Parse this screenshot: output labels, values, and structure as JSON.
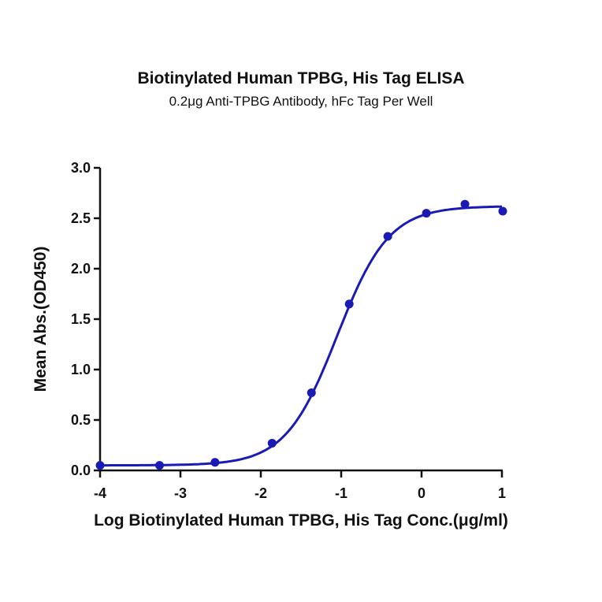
{
  "chart_data": {
    "type": "scatter",
    "title": "Biotinylated Human TPBG, His Tag ELISA",
    "subtitle": "0.2μg Anti-TPBG Antibody, hFc Tag Per Well",
    "xlabel": "Log Biotinylated Human TPBG, His Tag Conc.(μg/ml)",
    "ylabel": "Mean Abs.(OD450)",
    "xlim": [
      -4,
      1
    ],
    "ylim": [
      0,
      3.0
    ],
    "x_ticks": [
      "-4",
      "-3",
      "-2",
      "-1",
      "0",
      "1"
    ],
    "y_ticks": [
      "0.0",
      "0.5",
      "1.0",
      "1.5",
      "2.0",
      "2.5",
      "3.0"
    ],
    "grid": false,
    "legend": "none",
    "series": [
      {
        "name": "Biotinylated Human TPBG, His Tag",
        "color": "#1a1ab4",
        "x": [
          -4.0,
          -3.26,
          -2.57,
          -1.86,
          -1.37,
          -0.9,
          -0.42,
          0.06,
          0.54,
          1.01
        ],
        "y": [
          0.05,
          0.05,
          0.08,
          0.27,
          0.77,
          1.65,
          2.32,
          2.55,
          2.64,
          2.57
        ],
        "fit": "4-parameter logistic curve"
      }
    ]
  }
}
